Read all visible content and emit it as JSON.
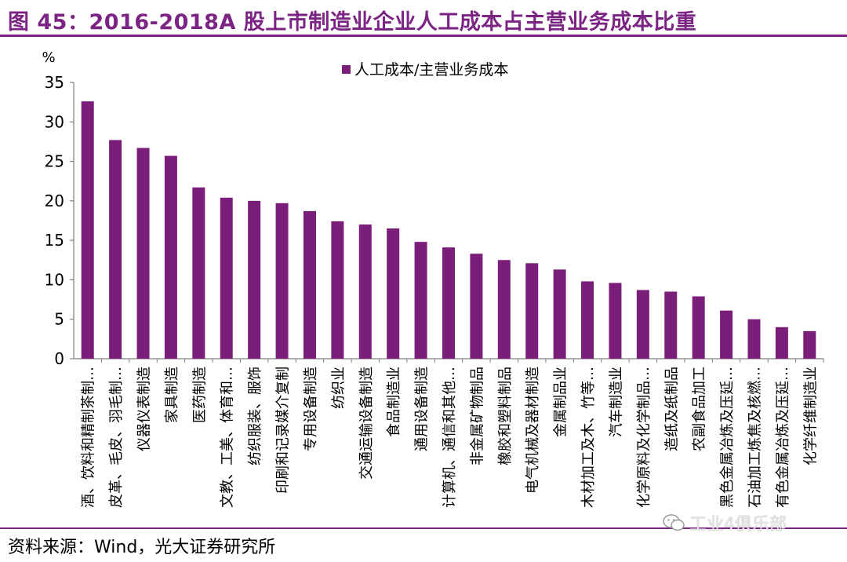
{
  "figure": {
    "title": "图 45：2016-2018A 股上市制造业企业人工成本占主营业务成本比重",
    "source": "资料来源：Wind，光大证券研究所",
    "watermark": "工业4俱乐部"
  },
  "colors": {
    "accent": "#7b2483",
    "bar": "#7b1e7a"
  },
  "chart_data": {
    "type": "bar",
    "unit_label": "%",
    "ylim": [
      0,
      35
    ],
    "yticks": [
      0,
      5,
      10,
      15,
      20,
      25,
      30,
      35
    ],
    "grid": false,
    "legend_position": "top-center",
    "series": [
      {
        "name": "人工成本/主营业务成本",
        "values": [
          32.6,
          27.7,
          26.7,
          25.7,
          21.7,
          20.4,
          20.0,
          19.7,
          18.7,
          17.4,
          17.0,
          16.5,
          14.8,
          14.1,
          13.3,
          12.5,
          12.1,
          11.3,
          9.8,
          9.6,
          8.7,
          8.5,
          7.9,
          6.1,
          5.0,
          4.0,
          3.5
        ]
      }
    ],
    "categories": [
      "酒、饮料和精制茶制…",
      "皮革、毛皮、羽毛制…",
      "仪器仪表制造",
      "家具制造",
      "医药制造",
      "文教、工美、体育和…",
      "纺织服装、服饰",
      "印刷和记录媒介复制",
      "专用设备制造",
      "纺织业",
      "交通运输设备制造",
      "食品制造业",
      "通用设备制造",
      "计算机、通信和其他…",
      "非金属矿物制品",
      "橡胶和塑料制品",
      "电气机械及器材制造",
      "金属制品业",
      "木材加工及木、竹等…",
      "汽车制造业",
      "化学原料及化学制品…",
      "造纸及纸制品",
      "农副食品加工",
      "黑色金属冶炼及压延…",
      "石油加工炼焦及核燃…",
      "有色金属冶炼及压延…",
      "化学纤维制造业"
    ]
  }
}
